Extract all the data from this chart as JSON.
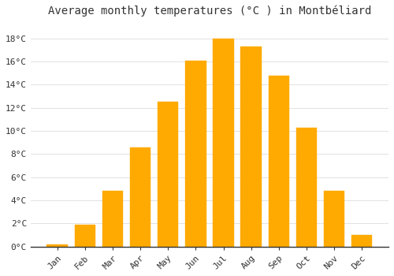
{
  "title": "Average monthly temperatures (°C ) in Montbéliard",
  "months": [
    "Jan",
    "Feb",
    "Mar",
    "Apr",
    "May",
    "Jun",
    "Jul",
    "Aug",
    "Sep",
    "Oct",
    "Nov",
    "Dec"
  ],
  "values": [
    0.2,
    1.9,
    4.8,
    8.6,
    12.5,
    16.1,
    18.0,
    17.3,
    14.8,
    10.3,
    4.8,
    1.0
  ],
  "bar_color": "#FFAA00",
  "bar_edge_color": "#FFAA00",
  "background_color": "#FFFFFF",
  "grid_color": "#DDDDDD",
  "ylim": [
    0,
    19.5
  ],
  "yticks": [
    0,
    2,
    4,
    6,
    8,
    10,
    12,
    14,
    16,
    18
  ],
  "title_fontsize": 10,
  "tick_fontsize": 8,
  "bar_width": 0.75
}
